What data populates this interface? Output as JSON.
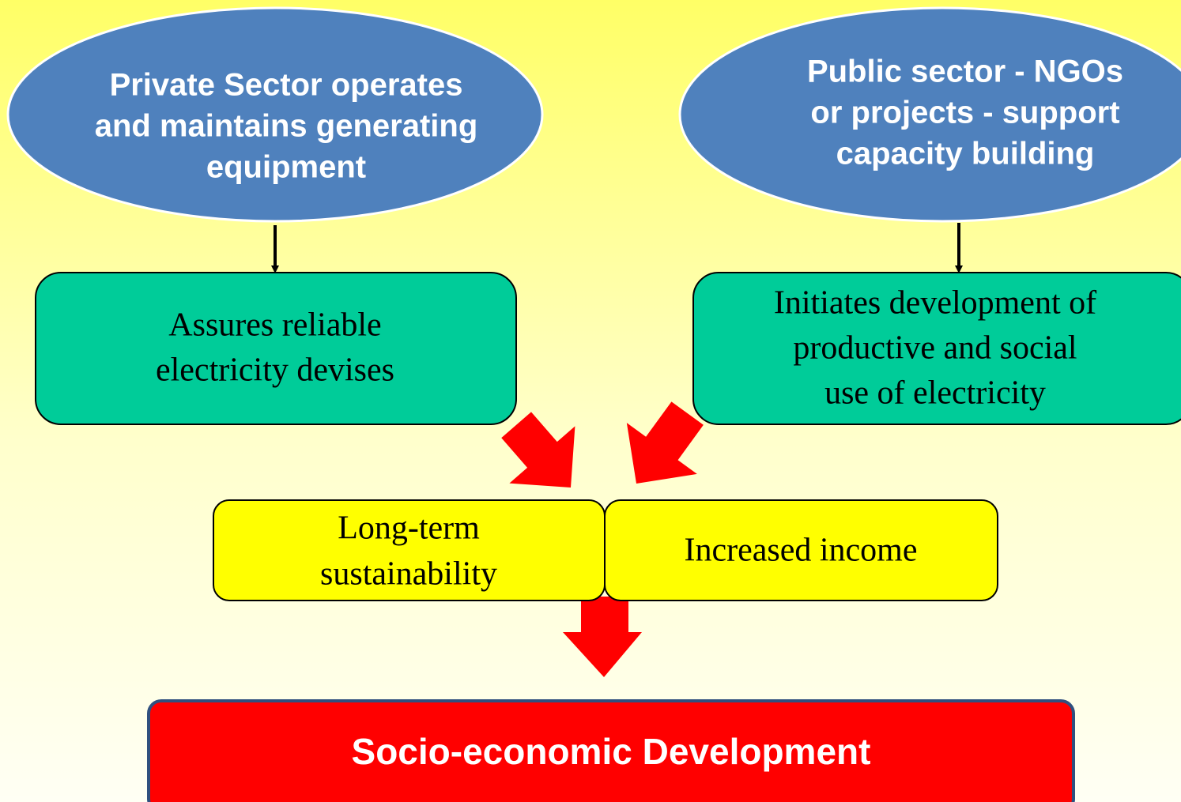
{
  "nodes": [
    {
      "label": [
        "Private Sector operates",
        "and maintains generating",
        "equipment"
      ]
    },
    {
      "label": [
        "Public sector - NGOs",
        "or projects - support",
        "capacity building"
      ]
    },
    {
      "label": [
        "Assures reliable",
        "electricity devises"
      ]
    },
    {
      "label": [
        "Initiates development of",
        "productive and social",
        "use of electricity"
      ]
    },
    {
      "label": [
        "Long-term",
        "sustainability"
      ]
    },
    {
      "label": [
        "Increased income"
      ]
    },
    {
      "label": [
        "Socio-economic Development"
      ]
    }
  ]
}
